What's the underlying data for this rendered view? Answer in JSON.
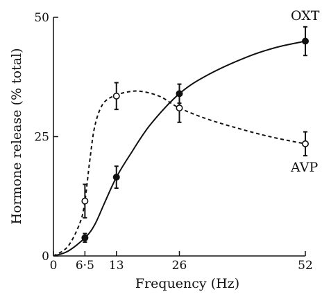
{
  "chart_data": {
    "type": "line",
    "title": "",
    "xlabel": "Frequency (Hz)",
    "ylabel": "Hormone release (% total)",
    "xlim": [
      0,
      52
    ],
    "ylim": [
      0,
      50
    ],
    "x_ticks": [
      0,
      6.5,
      13,
      26,
      52
    ],
    "x_tick_labels": [
      "0",
      "6·5",
      "13",
      "26",
      "52"
    ],
    "y_ticks": [
      0,
      25,
      50
    ],
    "y_tick_labels": [
      "0",
      "25",
      "50"
    ],
    "grid": false,
    "legend": "inline labels at right end of series",
    "series": [
      {
        "name": "OXT",
        "marker": "filled-circle",
        "line": "solid",
        "color": "#111111",
        "x": [
          6.5,
          13,
          26,
          52
        ],
        "y": [
          3.8,
          16.5,
          34,
          45
        ],
        "error": [
          0.9,
          2.3,
          2.0,
          3.0
        ],
        "curve": [
          [
            0,
            0
          ],
          [
            3,
            1
          ],
          [
            6.5,
            3.8
          ],
          [
            8.5,
            6.5
          ],
          [
            10.5,
            11
          ],
          [
            13,
            16.5
          ],
          [
            16,
            21.5
          ],
          [
            20,
            27.5
          ],
          [
            26,
            34
          ],
          [
            32,
            38
          ],
          [
            40,
            41.7
          ],
          [
            46,
            43.7
          ],
          [
            52,
            45
          ]
        ]
      },
      {
        "name": "AVP",
        "marker": "open-circle",
        "line": "dashed",
        "color": "#111111",
        "x": [
          6.5,
          13,
          26,
          52
        ],
        "y": [
          11.5,
          33.5,
          31,
          23.5
        ],
        "error": [
          3.5,
          2.8,
          3.0,
          2.5
        ],
        "curve": [
          [
            0,
            0
          ],
          [
            3,
            2
          ],
          [
            5.5,
            7
          ],
          [
            6.5,
            11.5
          ],
          [
            7.5,
            20
          ],
          [
            8.5,
            27
          ],
          [
            10,
            31.5
          ],
          [
            12,
            33.3
          ],
          [
            15,
            34.3
          ],
          [
            18,
            34.5
          ],
          [
            22,
            33.4
          ],
          [
            26,
            31
          ],
          [
            32,
            28.6
          ],
          [
            40,
            26.2
          ],
          [
            46,
            24.7
          ],
          [
            52,
            23.5
          ]
        ]
      }
    ]
  }
}
